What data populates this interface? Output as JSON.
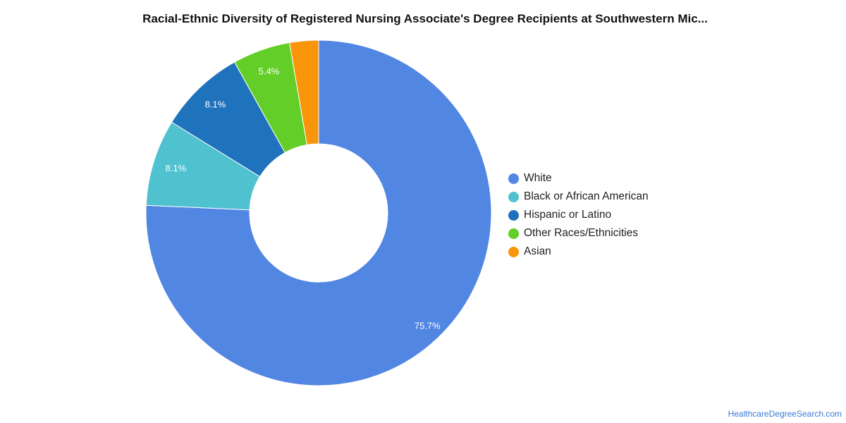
{
  "chart_data": {
    "type": "pie",
    "donut": true,
    "title": "Racial-Ethnic Diversity of Registered Nursing Associate's Degree Recipients at Southwestern Mic...",
    "legend_position": "right",
    "slices": [
      {
        "label": "White",
        "value": 75.7,
        "display": "75.7%",
        "color": "#5286e3"
      },
      {
        "label": "Black or African American",
        "value": 8.1,
        "display": "8.1%",
        "color": "#50c1cf"
      },
      {
        "label": "Hispanic or Latino",
        "value": 8.1,
        "display": "8.1%",
        "color": "#1f72bc"
      },
      {
        "label": "Other Races/Ethnicities",
        "value": 5.4,
        "display": "5.4%",
        "color": "#63ce27"
      },
      {
        "label": "Asian",
        "value": 2.7,
        "display": "",
        "color": "#f8950b"
      }
    ]
  },
  "source": "HealthcareDegreeSearch.com"
}
